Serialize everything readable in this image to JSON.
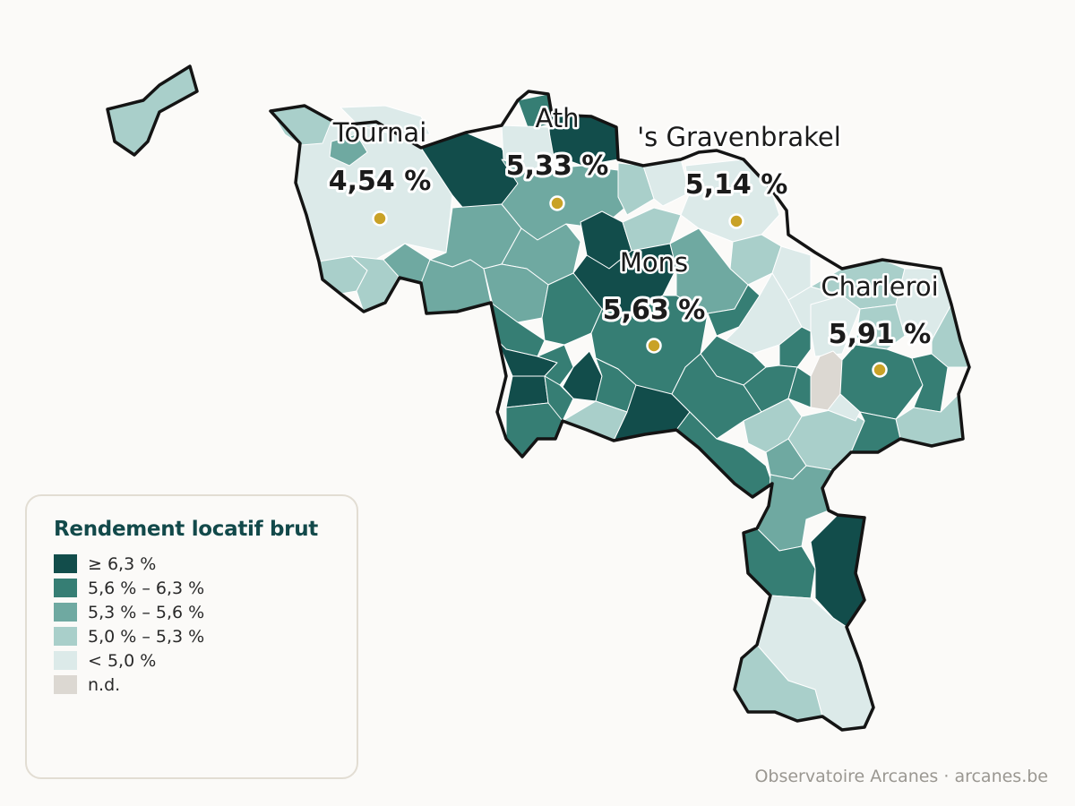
{
  "colors": {
    "c1": "#124d4b",
    "c2": "#367e74",
    "c3": "#6fa9a1",
    "c4": "#a9cfca",
    "c5": "#dceae9",
    "nd": "#dcd8d2",
    "dot": "#c9a227",
    "title": "#12494a"
  },
  "cities": [
    {
      "name": "Tournai",
      "value": "4,54 %"
    },
    {
      "name": "Ath",
      "value": "5,33 %"
    },
    {
      "name": "'s Gravenbrakel",
      "value": "5,14 %"
    },
    {
      "name": "Mons",
      "value": "5,63 %"
    },
    {
      "name": "Charleroi",
      "value": "5,91 %"
    }
  ],
  "legend": {
    "title": "Rendement locatif brut",
    "items": [
      {
        "label": "≥ 6,3 %",
        "class": "c1"
      },
      {
        "label": "5,6 % – 6,3 %",
        "class": "c2"
      },
      {
        "label": "5,3 % – 5,6 %",
        "class": "c3"
      },
      {
        "label": "5,0 % – 5,3 %",
        "class": "c4"
      },
      {
        "label": "< 5,0 %",
        "class": "c5"
      },
      {
        "label": "n.d.",
        "class": "nd"
      }
    ]
  },
  "credit": "Observatoire Arcanes · arcanes.be"
}
